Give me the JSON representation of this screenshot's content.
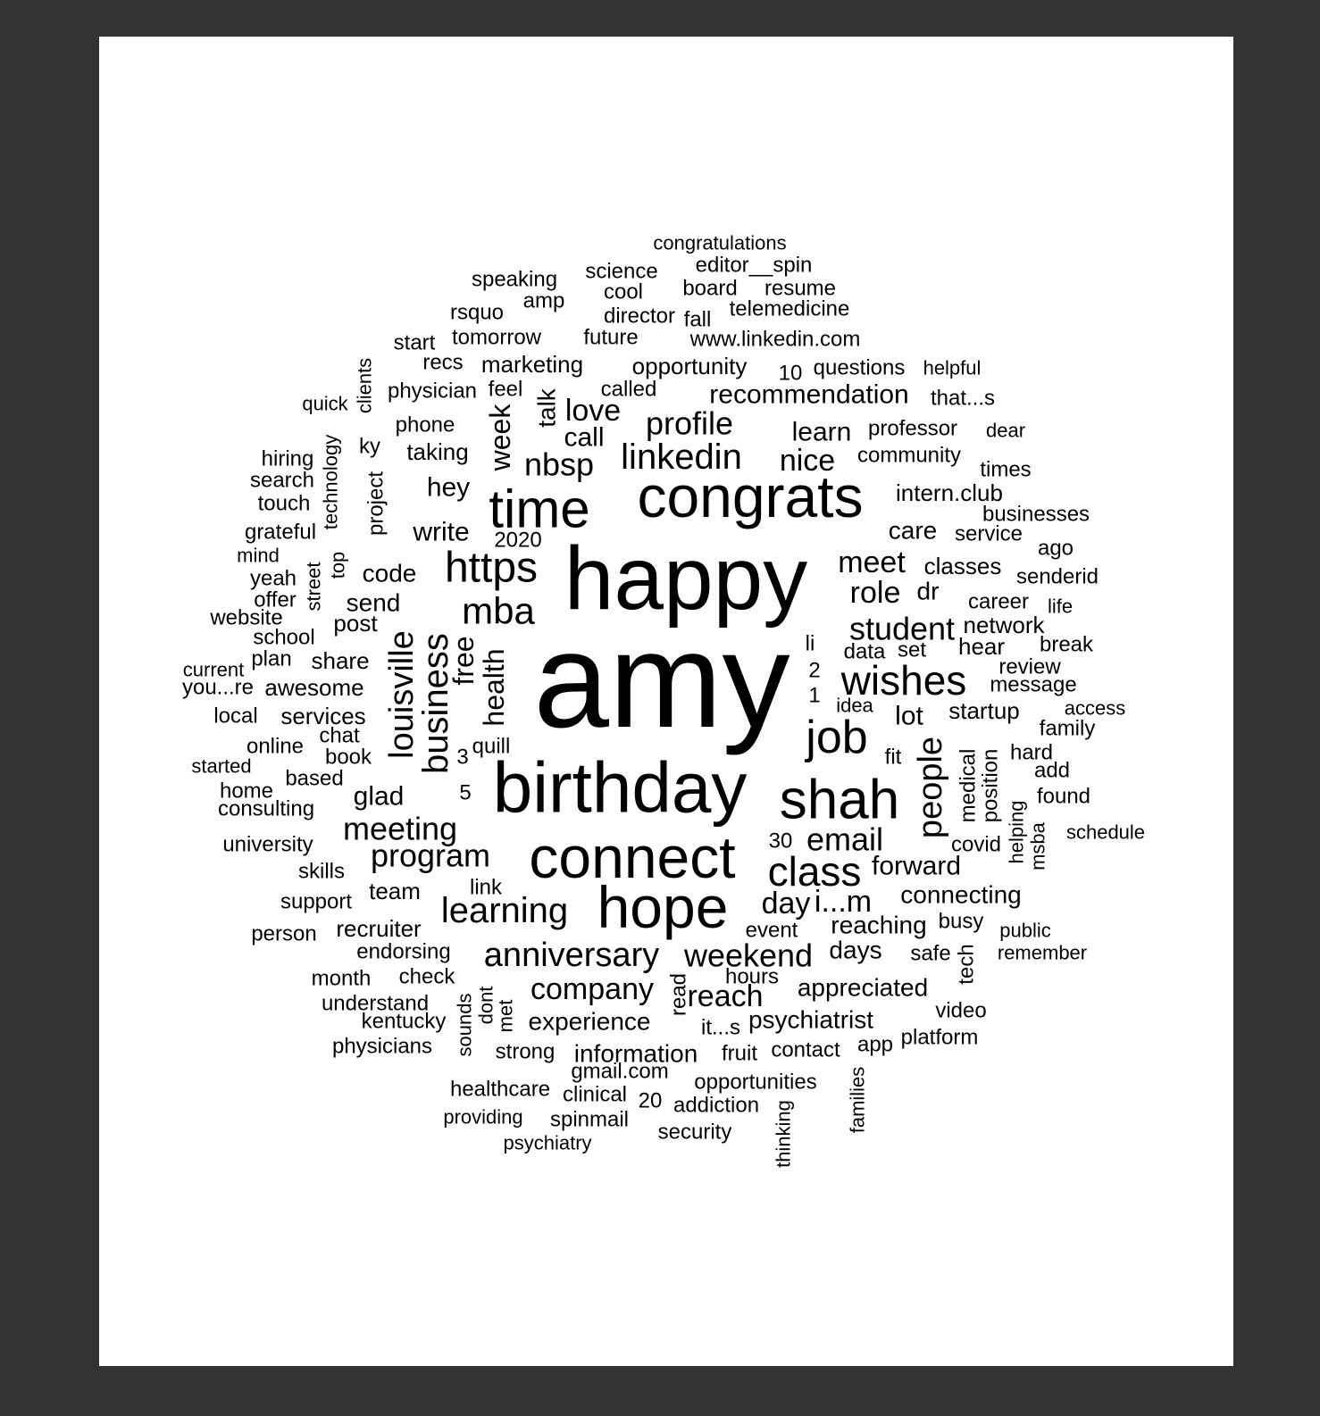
{
  "colors": {
    "background": "#333333",
    "paper": "#ffffff",
    "text": "#000000"
  },
  "chart_data": {
    "type": "wordcloud",
    "words": [
      {
        "text": "amy",
        "weight": 100
      },
      {
        "text": "happy",
        "weight": 78
      },
      {
        "text": "birthday",
        "weight": 62
      },
      {
        "text": "congrats",
        "weight": 56
      },
      {
        "text": "connect",
        "weight": 54
      },
      {
        "text": "hope",
        "weight": 54
      },
      {
        "text": "time",
        "weight": 50
      },
      {
        "text": "shah",
        "weight": 52
      },
      {
        "text": "https",
        "weight": 40
      },
      {
        "text": "class",
        "weight": 38
      },
      {
        "text": "wishes",
        "weight": 38
      },
      {
        "text": "job",
        "weight": 40
      },
      {
        "text": "linkedin",
        "weight": 36
      },
      {
        "text": "business",
        "weight": 36
      },
      {
        "text": "mba",
        "weight": 36
      },
      {
        "text": "learning",
        "weight": 34
      },
      {
        "text": "anniversary",
        "weight": 34
      },
      {
        "text": "weekend",
        "weight": 30
      },
      {
        "text": "profile",
        "weight": 30
      },
      {
        "text": "student",
        "weight": 30
      },
      {
        "text": "louisville",
        "weight": 30
      },
      {
        "text": "nbsp",
        "weight": 30
      },
      {
        "text": "people",
        "weight": 30
      },
      {
        "text": "meeting",
        "weight": 30
      },
      {
        "text": "program",
        "weight": 30
      },
      {
        "text": "email",
        "weight": 30
      },
      {
        "text": "company",
        "weight": 28
      },
      {
        "text": "reach",
        "weight": 28
      },
      {
        "text": "day",
        "weight": 28
      },
      {
        "text": "i...m",
        "weight": 28
      },
      {
        "text": "love",
        "weight": 28
      },
      {
        "text": "meet",
        "weight": 28
      },
      {
        "text": "role",
        "weight": 28
      },
      {
        "text": "nice",
        "weight": 28
      },
      {
        "text": "forward",
        "weight": 26
      },
      {
        "text": "recommendation",
        "weight": 26
      },
      {
        "text": "week",
        "weight": 26
      },
      {
        "text": "health",
        "weight": 26
      },
      {
        "text": "free",
        "weight": 24
      },
      {
        "text": "call",
        "weight": 24
      },
      {
        "text": "talk",
        "weight": 24
      },
      {
        "text": "lot",
        "weight": 24
      },
      {
        "text": "appreciated",
        "weight": 24
      },
      {
        "text": "psychiatrist",
        "weight": 24
      },
      {
        "text": "experience",
        "weight": 24
      },
      {
        "text": "information",
        "weight": 24
      },
      {
        "text": "connecting",
        "weight": 24
      },
      {
        "text": "reaching",
        "weight": 24
      },
      {
        "text": "learn",
        "weight": 24
      },
      {
        "text": "code",
        "weight": 24
      },
      {
        "text": "send",
        "weight": 24
      },
      {
        "text": "glad",
        "weight": 24
      },
      {
        "text": "write",
        "weight": 24
      },
      {
        "text": "hey",
        "weight": 24
      },
      {
        "text": "care",
        "weight": 24
      },
      {
        "text": "dr",
        "weight": 24
      },
      {
        "text": "days",
        "weight": 24
      },
      {
        "text": "opportunity",
        "weight": 22
      },
      {
        "text": "marketing",
        "weight": 22
      },
      {
        "text": "awesome",
        "weight": 22
      },
      {
        "text": "share",
        "weight": 22
      },
      {
        "text": "services",
        "weight": 22
      },
      {
        "text": "recruiter",
        "weight": 22
      },
      {
        "text": "startup",
        "weight": 22
      },
      {
        "text": "hear",
        "weight": 22
      },
      {
        "text": "network",
        "weight": 22
      },
      {
        "text": "classes",
        "weight": 22
      },
      {
        "text": "taking",
        "weight": 22
      },
      {
        "text": "post",
        "weight": 22
      },
      {
        "text": "medical",
        "weight": 22
      },
      {
        "text": "position",
        "weight": 22
      },
      {
        "text": "team",
        "weight": 22
      },
      {
        "text": "event",
        "weight": 20
      },
      {
        "text": "link",
        "weight": 20
      },
      {
        "text": "book",
        "weight": 20
      },
      {
        "text": "physician",
        "weight": 20
      },
      {
        "text": "questions",
        "weight": 20
      },
      {
        "text": "intern.club",
        "weight": 20
      },
      {
        "text": "tomorrow",
        "weight": 20
      },
      {
        "text": "project",
        "weight": 20
      },
      {
        "text": "data",
        "weight": 20
      },
      {
        "text": "idea",
        "weight": 20
      },
      {
        "text": "fruit",
        "weight": 20
      },
      {
        "text": "contact",
        "weight": 20
      },
      {
        "text": "opportunities",
        "weight": 20
      },
      {
        "text": "addiction",
        "weight": 20
      },
      {
        "text": "security",
        "weight": 20
      },
      {
        "text": "clinical",
        "weight": 20
      },
      {
        "text": "healthcare",
        "weight": 20
      },
      {
        "text": "spinmail",
        "weight": 20
      },
      {
        "text": "strong",
        "weight": 20
      },
      {
        "text": "check",
        "weight": 20
      },
      {
        "text": "endorsing",
        "weight": 20
      },
      {
        "text": "busy",
        "weight": 20
      },
      {
        "text": "tech",
        "weight": 20
      },
      {
        "text": "safe",
        "weight": 20
      },
      {
        "text": "video",
        "weight": 20
      },
      {
        "text": "platform",
        "weight": 20
      },
      {
        "text": "hours",
        "weight": 20
      },
      {
        "text": "read",
        "weight": 20
      },
      {
        "text": "kentucky",
        "weight": 20
      },
      {
        "text": "understand",
        "weight": 20
      },
      {
        "text": "physicians",
        "weight": 20
      },
      {
        "text": "month",
        "weight": 20
      },
      {
        "text": "person",
        "weight": 20
      },
      {
        "text": "support",
        "weight": 20
      },
      {
        "text": "skills",
        "weight": 20
      },
      {
        "text": "university",
        "weight": 20
      },
      {
        "text": "consulting",
        "weight": 20
      },
      {
        "text": "home",
        "weight": 20
      },
      {
        "text": "based",
        "weight": 20
      },
      {
        "text": "online",
        "weight": 20
      },
      {
        "text": "chat",
        "weight": 20
      },
      {
        "text": "local",
        "weight": 20
      },
      {
        "text": "you...re",
        "weight": 20
      },
      {
        "text": "plan",
        "weight": 20
      },
      {
        "text": "school",
        "weight": 20
      },
      {
        "text": "website",
        "weight": 20
      },
      {
        "text": "offer",
        "weight": 20
      },
      {
        "text": "yeah",
        "weight": 20
      },
      {
        "text": "grateful",
        "weight": 20
      },
      {
        "text": "touch",
        "weight": 20
      },
      {
        "text": "search",
        "weight": 20
      },
      {
        "text": "hiring",
        "weight": 20
      },
      {
        "text": "phone",
        "weight": 20
      },
      {
        "text": "ky",
        "weight": 20
      },
      {
        "text": "feel",
        "weight": 20
      },
      {
        "text": "called",
        "weight": 20
      },
      {
        "text": "recs",
        "weight": 20
      },
      {
        "text": "start",
        "weight": 20
      },
      {
        "text": "rsquo",
        "weight": 20
      },
      {
        "text": "amp",
        "weight": 20
      },
      {
        "text": "speaking",
        "weight": 20
      },
      {
        "text": "science",
        "weight": 20
      },
      {
        "text": "cool",
        "weight": 20
      },
      {
        "text": "director",
        "weight": 20
      },
      {
        "text": "future",
        "weight": 20
      },
      {
        "text": "fall",
        "weight": 20
      },
      {
        "text": "board",
        "weight": 20
      },
      {
        "text": "resume",
        "weight": 20
      },
      {
        "text": "editor__spin",
        "weight": 20
      },
      {
        "text": "telemedicine",
        "weight": 20
      },
      {
        "text": "www.linkedin.com",
        "weight": 20
      },
      {
        "text": "congratulations",
        "weight": 18
      },
      {
        "text": "helpful",
        "weight": 18
      },
      {
        "text": "that...s",
        "weight": 18
      },
      {
        "text": "professor",
        "weight": 20
      },
      {
        "text": "community",
        "weight": 20
      },
      {
        "text": "dear",
        "weight": 18
      },
      {
        "text": "times",
        "weight": 18
      },
      {
        "text": "businesses",
        "weight": 18
      },
      {
        "text": "service",
        "weight": 18
      },
      {
        "text": "ago",
        "weight": 18
      },
      {
        "text": "senderid",
        "weight": 18
      },
      {
        "text": "career",
        "weight": 18
      },
      {
        "text": "life",
        "weight": 18
      },
      {
        "text": "break",
        "weight": 18
      },
      {
        "text": "review",
        "weight": 18
      },
      {
        "text": "message",
        "weight": 18
      },
      {
        "text": "access",
        "weight": 18
      },
      {
        "text": "family",
        "weight": 18
      },
      {
        "text": "hard",
        "weight": 18
      },
      {
        "text": "add",
        "weight": 18
      },
      {
        "text": "found",
        "weight": 18
      },
      {
        "text": "schedule",
        "weight": 18
      },
      {
        "text": "covid",
        "weight": 18
      },
      {
        "text": "helping",
        "weight": 18
      },
      {
        "text": "msba",
        "weight": 18
      },
      {
        "text": "public",
        "weight": 18
      },
      {
        "text": "remember",
        "weight": 18
      },
      {
        "text": "clients",
        "weight": 18
      },
      {
        "text": "quick",
        "weight": 18
      },
      {
        "text": "technology",
        "weight": 18
      },
      {
        "text": "top",
        "weight": 18
      },
      {
        "text": "street",
        "weight": 18
      },
      {
        "text": "mind",
        "weight": 18
      },
      {
        "text": "current",
        "weight": 18
      },
      {
        "text": "started",
        "weight": 18
      },
      {
        "text": "2020",
        "weight": 18
      },
      {
        "text": "quill",
        "weight": 18
      },
      {
        "text": "sounds",
        "weight": 18
      },
      {
        "text": "dont",
        "weight": 18
      },
      {
        "text": "met",
        "weight": 18
      },
      {
        "text": "it...s",
        "weight": 18
      },
      {
        "text": "gmail.com",
        "weight": 18
      },
      {
        "text": "app",
        "weight": 18
      },
      {
        "text": "providing",
        "weight": 18
      },
      {
        "text": "psychiatry",
        "weight": 18
      },
      {
        "text": "thinking",
        "weight": 18
      },
      {
        "text": "families",
        "weight": 18
      },
      {
        "text": "fit",
        "weight": 18
      },
      {
        "text": "set",
        "weight": 18
      },
      {
        "text": "li",
        "weight": 18
      },
      {
        "text": "10",
        "weight": 18
      },
      {
        "text": "3",
        "weight": 18
      },
      {
        "text": "5",
        "weight": 18
      },
      {
        "text": "2",
        "weight": 18
      },
      {
        "text": "1",
        "weight": 18
      },
      {
        "text": "30",
        "weight": 18
      },
      {
        "text": "20",
        "weight": 18
      }
    ]
  }
}
